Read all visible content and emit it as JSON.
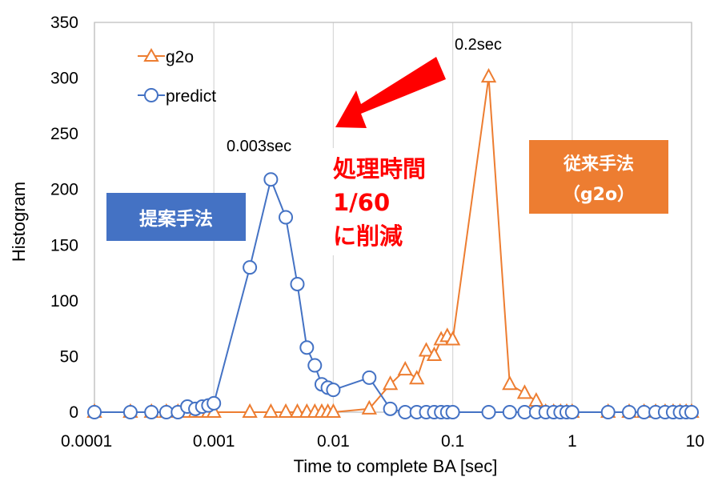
{
  "chart_data": {
    "type": "line",
    "xscale": "log",
    "xlabel": "Time to complete BA [sec]",
    "ylabel": "Histogram",
    "xlim": [
      0.0001,
      10
    ],
    "ylim": [
      0,
      350
    ],
    "x_ticks": [
      "0.0001",
      "0.001",
      "0.01",
      "0.1",
      "1",
      "10"
    ],
    "y_ticks": [
      "0",
      "50",
      "100",
      "150",
      "200",
      "250",
      "300",
      "350"
    ],
    "grid": "vertical",
    "legend_position": "top-left",
    "series": [
      {
        "name": "g2o",
        "color": "#ed7d31",
        "marker": "triangle",
        "x": [
          0.0001,
          0.0002,
          0.0003,
          0.0004,
          0.0005,
          0.0006,
          0.0007,
          0.0008,
          0.0009,
          0.001,
          0.002,
          0.003,
          0.004,
          0.005,
          0.006,
          0.007,
          0.008,
          0.009,
          0.01,
          0.02,
          0.03,
          0.04,
          0.05,
          0.06,
          0.07,
          0.08,
          0.09,
          0.1,
          0.2,
          0.3,
          0.4,
          0.5,
          0.6,
          0.7,
          0.8,
          0.9,
          1,
          2,
          3,
          4,
          5,
          6,
          7,
          8,
          9,
          10
        ],
        "y": [
          0,
          0,
          0,
          0,
          0,
          0,
          0,
          0,
          0,
          0,
          0,
          0,
          0,
          0,
          0,
          0,
          0,
          0,
          0,
          3,
          25,
          38,
          30,
          55,
          51,
          65,
          68,
          65,
          301,
          25,
          17,
          10,
          0,
          0,
          0,
          0,
          0,
          0,
          0,
          0,
          0,
          0,
          0,
          0,
          0,
          0
        ]
      },
      {
        "name": "predict",
        "color": "#4472c4",
        "marker": "circle",
        "x": [
          0.0001,
          0.0002,
          0.0003,
          0.0004,
          0.0005,
          0.0006,
          0.0007,
          0.0008,
          0.0009,
          0.001,
          0.002,
          0.003,
          0.004,
          0.005,
          0.006,
          0.007,
          0.008,
          0.009,
          0.01,
          0.02,
          0.03,
          0.04,
          0.05,
          0.06,
          0.07,
          0.08,
          0.09,
          0.1,
          0.2,
          0.3,
          0.4,
          0.5,
          0.6,
          0.7,
          0.8,
          0.9,
          1,
          2,
          3,
          4,
          5,
          6,
          7,
          8,
          9,
          10
        ],
        "y": [
          0,
          0,
          0,
          0,
          0,
          5,
          3,
          5,
          6,
          8,
          130,
          209,
          175,
          115,
          58,
          42,
          25,
          22,
          20,
          31,
          3,
          0,
          0,
          0,
          0,
          0,
          0,
          0,
          0,
          0,
          0,
          0,
          0,
          0,
          0,
          0,
          0,
          0,
          0,
          0,
          0,
          0,
          0,
          0,
          0,
          0
        ]
      }
    ],
    "annotations": {
      "g2o_peak": "0.2sec",
      "predict_peak": "0.003sec",
      "proposed_label": "提案手法",
      "conventional_label_line1": "従来手法",
      "conventional_label_line2": "（g2o）",
      "reduction_line1": "処理時間",
      "reduction_line2": "1/60",
      "reduction_line3": "に削減"
    }
  }
}
